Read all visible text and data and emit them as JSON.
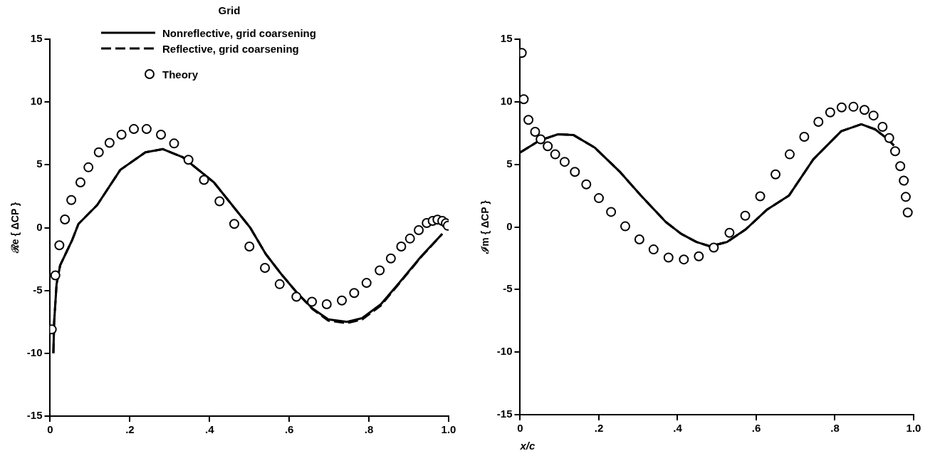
{
  "chart_data": [
    {
      "type": "line",
      "legend_title": "Grid",
      "ylabel": "ℛe { ΔCP }",
      "legend": "top",
      "grid": false,
      "xlim": [
        0,
        1
      ],
      "xticks": [
        0,
        {
          "value": 0.2,
          "label": ".2"
        },
        {
          "value": 0.4,
          "label": ".4"
        },
        {
          "value": 0.6,
          "label": ".6"
        },
        {
          "value": 0.8,
          "label": ".8"
        },
        {
          "value": 1,
          "label": "1.0"
        }
      ],
      "ylim": [
        -15,
        15
      ],
      "yticks": [
        -15,
        -10,
        -5,
        0,
        5,
        10,
        15
      ],
      "series": [
        {
          "name": "Nonreflective, grid coarsening",
          "type": "line",
          "line_style": "solid",
          "color": "#000000",
          "x": [
            0.008,
            0.01,
            0.016,
            0.025,
            0.04,
            0.055,
            0.071,
            0.118,
            0.176,
            0.239,
            0.283,
            0.333,
            0.411,
            0.502,
            0.541,
            0.58,
            0.62,
            0.659,
            0.698,
            0.745,
            0.783,
            0.83,
            0.877,
            0.932,
            0.984
          ],
          "values": [
            -10,
            -7.5,
            -4.5,
            -3,
            -2,
            -1,
            0.3,
            1.8,
            4.6,
            6,
            6.25,
            5.6,
            3.6,
            0,
            -2.1,
            -3.7,
            -5.2,
            -6.45,
            -7.3,
            -7.5,
            -7.2,
            -6.1,
            -4.35,
            -2.25,
            -0.5
          ]
        },
        {
          "name": "Reflective, grid coarsening",
          "type": "line",
          "line_style": "dashed",
          "color": "#000000",
          "x": [
            0.008,
            0.01,
            0.016,
            0.025,
            0.04,
            0.055,
            0.071,
            0.118,
            0.176,
            0.239,
            0.283,
            0.333,
            0.411,
            0.502,
            0.541,
            0.58,
            0.62,
            0.659,
            0.698,
            0.745,
            0.783,
            0.83,
            0.877,
            0.932,
            0.984
          ],
          "values": [
            -10,
            -7.5,
            -4.5,
            -3,
            -2,
            -1,
            0.3,
            1.8,
            4.6,
            6,
            6.25,
            5.6,
            3.6,
            0,
            -2.1,
            -3.7,
            -5.2,
            -6.5,
            -7.4,
            -7.6,
            -7.3,
            -6.2,
            -4.4,
            -2.3,
            -0.5
          ]
        },
        {
          "name": "Theory",
          "type": "scatter",
          "marker": "circle",
          "color": "#000000",
          "x": [
            0.004,
            0.013,
            0.023,
            0.037,
            0.053,
            0.076,
            0.096,
            0.122,
            0.149,
            0.179,
            0.21,
            0.242,
            0.278,
            0.311,
            0.347,
            0.386,
            0.425,
            0.462,
            0.5,
            0.539,
            0.576,
            0.618,
            0.657,
            0.694,
            0.732,
            0.763,
            0.794,
            0.827,
            0.855,
            0.881,
            0.903,
            0.925,
            0.945,
            0.96,
            0.972,
            0.984,
            0.993,
            0.998
          ],
          "values": [
            -8.1,
            -3.8,
            -1.4,
            0.65,
            2.2,
            3.6,
            4.8,
            6,
            6.75,
            7.4,
            7.85,
            7.85,
            7.4,
            6.7,
            5.4,
            3.8,
            2.1,
            0.3,
            -1.5,
            -3.2,
            -4.5,
            -5.5,
            -5.9,
            -6.1,
            -5.8,
            -5.2,
            -4.4,
            -3.4,
            -2.45,
            -1.5,
            -0.87,
            -0.2,
            0.37,
            0.54,
            0.64,
            0.54,
            0.35,
            0.15
          ]
        }
      ]
    },
    {
      "type": "line",
      "xlabel": "x/c",
      "ylabel": "ℐm { ΔCP }",
      "grid": false,
      "xlim": [
        0,
        1
      ],
      "xticks": [
        0,
        {
          "value": 0.2,
          "label": ".2"
        },
        {
          "value": 0.4,
          "label": ".4"
        },
        {
          "value": 0.6,
          "label": ".6"
        },
        {
          "value": 0.8,
          "label": ".8"
        },
        {
          "value": 1,
          "label": "1.0"
        }
      ],
      "ylim": [
        -15,
        15
      ],
      "yticks": [
        -15,
        -10,
        -5,
        0,
        5,
        10,
        15
      ],
      "series": [
        {
          "type": "line",
          "line_style": "solid",
          "color": "#000000",
          "x": [
            0,
            0.049,
            0.096,
            0.135,
            0.189,
            0.252,
            0.307,
            0.37,
            0.409,
            0.448,
            0.483,
            0.526,
            0.573,
            0.628,
            0.683,
            0.745,
            0.816,
            0.867,
            0.902,
            0.933,
            0.95
          ],
          "values": [
            5.95,
            6.9,
            7.4,
            7.35,
            6.35,
            4.45,
            2.5,
            0.4,
            -0.55,
            -1.2,
            -1.55,
            -1.2,
            -0.2,
            1.4,
            2.5,
            5.4,
            7.65,
            8.2,
            7.8,
            7.05,
            6.5
          ]
        },
        {
          "type": "line",
          "line_style": "dashed",
          "color": "#000000",
          "x": [
            0,
            0.049,
            0.096,
            0.135,
            0.189,
            0.252,
            0.307,
            0.37,
            0.409,
            0.448,
            0.483,
            0.526,
            0.573,
            0.628,
            0.683,
            0.745,
            0.816,
            0.867,
            0.902,
            0.933,
            0.95
          ],
          "values": [
            5.95,
            6.9,
            7.4,
            7.35,
            6.35,
            4.45,
            2.5,
            0.4,
            -0.55,
            -1.2,
            -1.55,
            -1.2,
            -0.2,
            1.4,
            2.5,
            5.4,
            7.65,
            8.2,
            7.8,
            7.05,
            6.5
          ]
        },
        {
          "type": "scatter",
          "marker": "circle",
          "color": "#000000",
          "x": [
            0.004,
            0.009,
            0.021,
            0.038,
            0.052,
            0.07,
            0.089,
            0.113,
            0.139,
            0.168,
            0.2,
            0.231,
            0.267,
            0.303,
            0.339,
            0.377,
            0.416,
            0.454,
            0.492,
            0.532,
            0.572,
            0.61,
            0.649,
            0.685,
            0.722,
            0.758,
            0.788,
            0.817,
            0.847,
            0.875,
            0.898,
            0.921,
            0.938,
            0.953,
            0.966,
            0.975,
            0.98,
            0.985
          ],
          "values": [
            13.9,
            10.2,
            8.55,
            7.6,
            7,
            6.45,
            5.8,
            5.2,
            4.4,
            3.4,
            2.3,
            1.2,
            0.05,
            -1,
            -1.8,
            -2.45,
            -2.6,
            -2.35,
            -1.65,
            -0.47,
            0.9,
            2.45,
            4.2,
            5.8,
            7.2,
            8.4,
            9.15,
            9.55,
            9.6,
            9.35,
            8.9,
            8,
            7.1,
            6.05,
            4.85,
            3.7,
            2.4,
            1.15
          ]
        }
      ]
    }
  ]
}
